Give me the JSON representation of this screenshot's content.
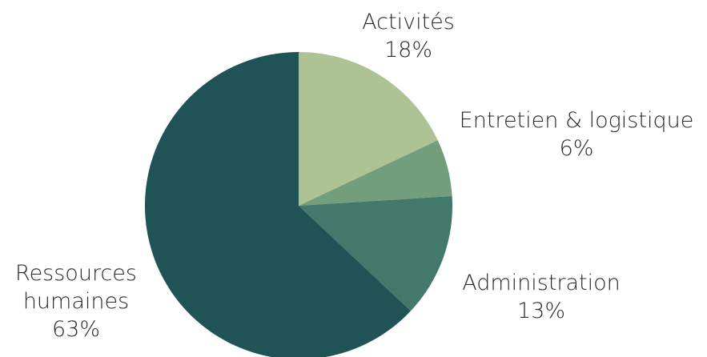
{
  "chart_data": {
    "type": "pie",
    "start_angle": "12 o'clock",
    "direction": "clockwise",
    "slices": [
      {
        "label_lines": [
          "Activités"
        ],
        "value": 18,
        "value_label": "18%",
        "color": "#adc393"
      },
      {
        "label_lines": [
          "Entretien & logistique"
        ],
        "value": 6,
        "value_label": "6%",
        "color": "#739e7c"
      },
      {
        "label_lines": [
          "Administration"
        ],
        "value": 13,
        "value_label": "13%",
        "color": "#42796b"
      },
      {
        "label_lines": [
          "Ressources",
          "humaines"
        ],
        "value": 63,
        "value_label": "63%",
        "color": "#1f5356"
      }
    ]
  }
}
